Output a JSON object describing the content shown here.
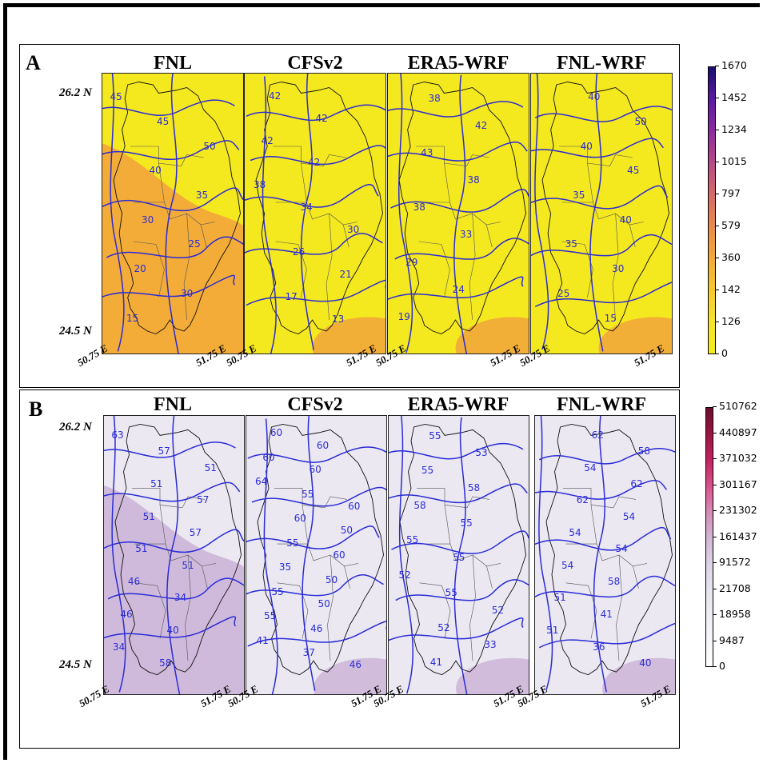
{
  "panels": [
    {
      "letter": "A",
      "titles": [
        "FNL",
        "CFSv2",
        "ERA5-WRF",
        "FNL-WRF"
      ],
      "lat_labels": [
        "26.2 N",
        "24.5 N"
      ],
      "lon_labels": [
        "50.75 E",
        "51.75 E"
      ],
      "colorbar": {
        "ticks": [
          "1670",
          "1452",
          "1234",
          "1015",
          "797",
          "579",
          "360",
          "142",
          "126",
          "0"
        ],
        "colors": [
          "#1a0f6e",
          "#5a1aa0",
          "#8a2c9c",
          "#b54a86",
          "#d46a6a",
          "#e88a4a",
          "#f2a93a",
          "#f6c82e",
          "#f7e32a",
          "#f4ec1c"
        ]
      },
      "fill_base": "#f4e81e",
      "fill_warm": "#f2a93a",
      "contour_labels": [
        [
          "45",
          "45",
          "50",
          "40",
          "35",
          "30",
          "25",
          "20",
          "30",
          "15"
        ],
        [
          "42",
          "42",
          "42",
          "42",
          "38",
          "34",
          "30",
          "26",
          "21",
          "17",
          "13"
        ],
        [
          "38",
          "42",
          "43",
          "38",
          "38",
          "33",
          "29",
          "24",
          "19"
        ],
        [
          "40",
          "50",
          "40",
          "45",
          "35",
          "40",
          "35",
          "30",
          "25",
          "15"
        ]
      ]
    },
    {
      "letter": "B",
      "titles": [
        "FNL",
        "CFSv2",
        "ERA5-WRF",
        "FNL-WRF"
      ],
      "lat_labels": [
        "26.2 N",
        "24.5 N"
      ],
      "lon_labels": [
        "50.75 E",
        "51.75 E"
      ],
      "colorbar": {
        "ticks": [
          "510762",
          "440897",
          "371032",
          "301167",
          "231302",
          "161437",
          "91572",
          "21708",
          "18958",
          "9487",
          "0"
        ],
        "colors": [
          "#6b0f2e",
          "#9a1442",
          "#c2225e",
          "#d9508a",
          "#d68ab4",
          "#d2b4d4",
          "#dcd2e4",
          "#e6e4ef",
          "#eeeef5",
          "#f6f6fa",
          "#ffffff"
        ]
      },
      "fill_base": "#ebe8f2",
      "fill_warm": "#cfb7d9",
      "contour_labels": [
        [
          "63",
          "57",
          "51",
          "51",
          "57",
          "51",
          "57",
          "51",
          "51",
          "46",
          "34",
          "46",
          "40",
          "34",
          "58"
        ],
        [
          "60",
          "60",
          "60",
          "60",
          "64",
          "55",
          "60",
          "60",
          "50",
          "55",
          "60",
          "35",
          "50",
          "55",
          "50",
          "55",
          "46",
          "41",
          "37",
          "46"
        ],
        [
          "55",
          "53",
          "55",
          "58",
          "58",
          "55",
          "55",
          "55",
          "52",
          "55",
          "52",
          "52",
          "33",
          "41"
        ],
        [
          "62",
          "58",
          "54",
          "62",
          "62",
          "54",
          "54",
          "54",
          "54",
          "58",
          "51",
          "41",
          "51",
          "36",
          "40"
        ]
      ]
    }
  ]
}
